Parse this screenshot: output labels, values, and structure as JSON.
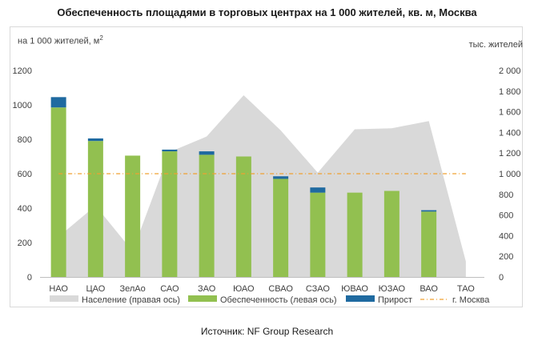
{
  "title": "Обеспеченность площадями в торговых центрах на 1 000 жителей, кв. м, Москва",
  "unit_left": "на 1 000 жителей, м",
  "unit_left_sup": "2",
  "unit_right": "тыс. жителей",
  "source": "Источник: NF Group Research",
  "colors": {
    "population": "#d9d9d9",
    "provision": "#92c050",
    "growth": "#1f6aa0",
    "moscow": "#f0a030"
  },
  "chart_data": {
    "type": "bar",
    "title": "Обеспеченность площадями в торговых центрах на 1 000 жителей, кв. м, Москва",
    "categories": [
      "НАО",
      "ЦАО",
      "ЗелАо",
      "САО",
      "ЗАО",
      "ЮАО",
      "СВАО",
      "СЗАО",
      "ЮВАО",
      "ЮЗАО",
      "ВАО",
      "ТАО"
    ],
    "series": [
      {
        "name": "Обеспеченность (левая ось)",
        "type": "bar",
        "axis": "left",
        "values": [
          985,
          790,
          705,
          730,
          710,
          700,
          570,
          490,
          490,
          500,
          380,
          0
        ]
      },
      {
        "name": "Прирост",
        "type": "bar-stacked",
        "axis": "left",
        "values": [
          60,
          15,
          0,
          10,
          20,
          0,
          15,
          30,
          0,
          0,
          8,
          0
        ]
      },
      {
        "name": "Население (правая ось)",
        "type": "area",
        "axis": "right",
        "values": [
          390,
          690,
          250,
          1210,
          1360,
          1760,
          1420,
          1010,
          1430,
          1440,
          1510,
          150
        ]
      },
      {
        "name": "г. Москва",
        "type": "line",
        "axis": "left",
        "values": [
          600,
          600,
          600,
          600,
          600,
          600,
          600,
          600,
          600,
          600,
          600,
          600
        ]
      }
    ],
    "y_left": {
      "ylim": [
        0,
        1200
      ],
      "ticks": [
        "0",
        "200",
        "400",
        "600",
        "800",
        "1000",
        "1200"
      ]
    },
    "y_right": {
      "ylim": [
        0,
        2000
      ],
      "ticks": [
        "0",
        "200",
        "400",
        "600",
        "800",
        "1 000",
        "1 200",
        "1 400",
        "1 600",
        "1 800",
        "2 000"
      ]
    },
    "legend": {
      "placement": "bottom",
      "items": [
        "Население (правая ось)",
        "Обеспеченность (левая ось)",
        "Прирост",
        "г. Москва"
      ]
    },
    "grid": false
  }
}
